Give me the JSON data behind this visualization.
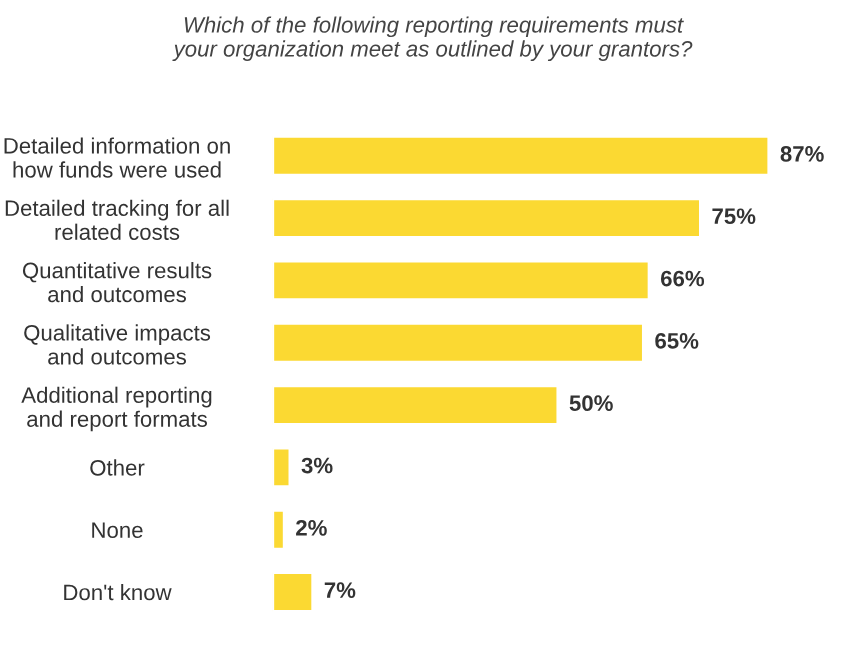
{
  "chart_data": {
    "type": "bar",
    "orientation": "horizontal",
    "title": "Which of the following reporting requirements must\nyour organization meet as outlined by your grantors?",
    "categories": [
      "Detailed information on\nhow funds were used",
      "Detailed tracking for all\nrelated costs",
      "Quantitative results\nand outcomes",
      "Qualitative impacts\nand outcomes",
      "Additional reporting\nand report formats",
      "Other",
      "None",
      "Don't know"
    ],
    "values": [
      87,
      75,
      66,
      65,
      50,
      3,
      2,
      7
    ],
    "value_labels": [
      "87%",
      "75%",
      "66%",
      "65%",
      "50%",
      "3%",
      "2%",
      "7%"
    ],
    "color": "#fbd932"
  }
}
